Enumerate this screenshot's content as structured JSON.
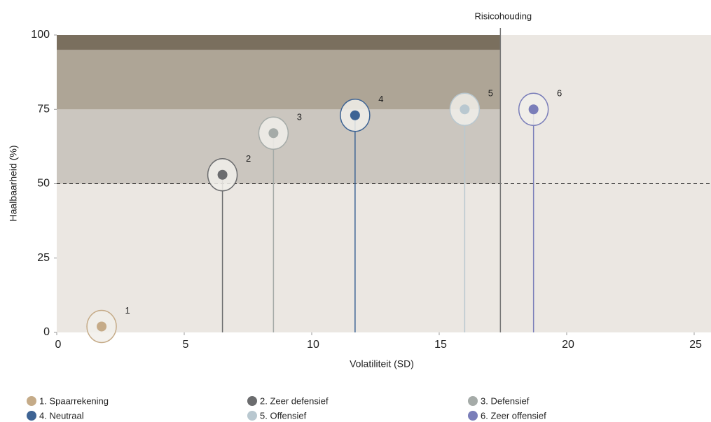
{
  "chart_data": {
    "type": "scatter",
    "xlabel": "Volatiliteit (SD)",
    "ylabel": "Haalbaarheid (%)",
    "xlim": [
      0,
      25.66
    ],
    "ylim": [
      0,
      100
    ],
    "xticks": [
      0,
      5,
      10,
      15,
      20,
      25
    ],
    "yticks": [
      0,
      25,
      50,
      75,
      100
    ],
    "risk_line": {
      "label": "Risicohouding",
      "x": 17.4
    },
    "threshold": 50,
    "bands": [
      {
        "from": 50,
        "to": 75,
        "color": "#cbc6bf"
      },
      {
        "from": 75,
        "to": 95,
        "color": "#aea596"
      },
      {
        "from": 95,
        "to": 100,
        "color": "#7a6f5e"
      }
    ],
    "series": [
      {
        "name": "1. Spaarrekening",
        "label": "1",
        "color": "#c5ab88",
        "x": [
          1.76
        ],
        "values": [
          2
        ]
      },
      {
        "name": "2. Zeer defensief",
        "label": "2",
        "color": "#6b6c6e",
        "x": [
          6.5
        ],
        "values": [
          53
        ]
      },
      {
        "name": "3. Defensief",
        "label": "3",
        "color": "#a5aba8",
        "x": [
          8.5
        ],
        "values": [
          67
        ]
      },
      {
        "name": "4. Neutraal",
        "label": "4",
        "color": "#3e6494",
        "x": [
          11.7
        ],
        "values": [
          73
        ]
      },
      {
        "name": "5. Offensief",
        "label": "5",
        "color": "#b9c8d0",
        "x": [
          16.0
        ],
        "values": [
          75
        ]
      },
      {
        "name": "6. Zeer offensief",
        "label": "6",
        "color": "#7a7eb9",
        "x": [
          18.7
        ],
        "values": [
          75
        ]
      }
    ]
  }
}
